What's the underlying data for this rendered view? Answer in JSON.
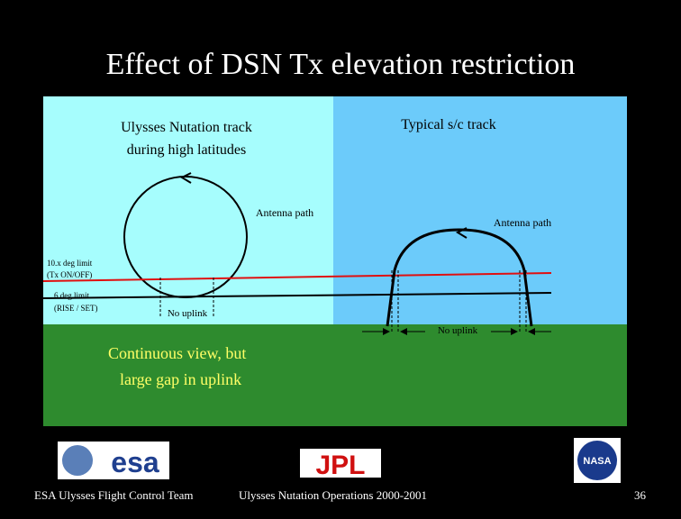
{
  "title": "Effect of DSN Tx elevation restriction",
  "left_panel": {
    "label_lines": [
      "Ulysses Nutation track",
      "during high latitudes"
    ],
    "antenna_path": "Antenna path",
    "no_uplink": "No uplink"
  },
  "right_panel": {
    "label": "Typical s/c track",
    "antenna_path": "Antenna path",
    "no_uplink": "No uplink"
  },
  "limits": [
    {
      "lines": [
        "10.x deg limit",
        "(Tx ON/OFF)"
      ]
    },
    {
      "lines": [
        "6 deg limit",
        "(RISE / SET)"
      ]
    }
  ],
  "ground_note": [
    "Continuous view, but",
    "large gap in uplink"
  ],
  "logos": [
    "esa",
    "JPL",
    "NASA"
  ],
  "footer": {
    "left": "ESA Ulysses Flight Control Team",
    "center": "Ulysses Nutation Operations 2000-2001",
    "page": "36"
  }
}
